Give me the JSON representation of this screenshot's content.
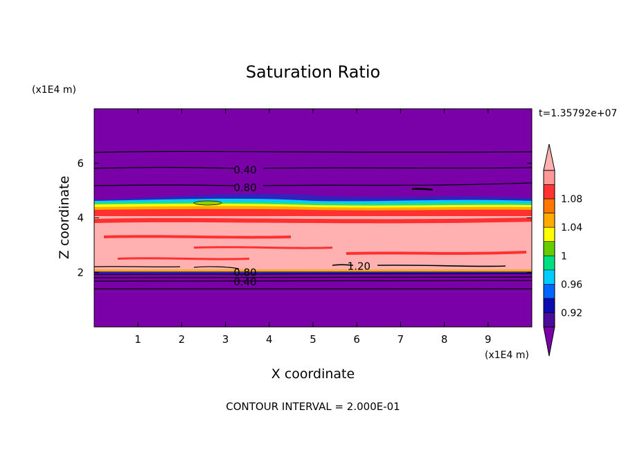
{
  "chart_data": {
    "type": "heatmap",
    "title": "Saturation Ratio",
    "xlabel": "X coordinate",
    "ylabel": "Z coordinate",
    "x_unit": "(x1E4 m)",
    "y_unit": "(x1E4 m)",
    "xlim": [
      0,
      10
    ],
    "ylim": [
      0,
      8
    ],
    "x_ticks": [
      "1",
      "2",
      "3",
      "4",
      "5",
      "6",
      "7",
      "8",
      "9"
    ],
    "y_ticks": [
      "2",
      "4",
      "6"
    ],
    "time_label": "t=1.35792e+07",
    "footer": "CONTOUR INTERVAL = 2.000E-01",
    "colorbar": {
      "labels": [
        "1.08",
        "1.04",
        "1",
        "0.96",
        "0.92"
      ],
      "colors": [
        "#4b0c9c",
        "#0c0cb0",
        "#0066ff",
        "#00ccff",
        "#00e080",
        "#66cc00",
        "#ffff00",
        "#ffaa00",
        "#ff7700",
        "#ff3333",
        "#ff9999"
      ],
      "bg_color": "#7a00a8",
      "pink_color": "#ffb0b0",
      "red_color": "#ff3030"
    },
    "contour_labels": [
      {
        "text": "0.40",
        "x": 3.45,
        "z": 5.75
      },
      {
        "text": "0.80",
        "x": 3.45,
        "z": 5.1
      },
      {
        "text": "1.20",
        "x": 6.05,
        "z": 2.22
      },
      {
        "text": "0.80",
        "x": 3.45,
        "z": 2.0
      },
      {
        "text": "0.40",
        "x": 3.45,
        "z": 1.65
      }
    ]
  }
}
